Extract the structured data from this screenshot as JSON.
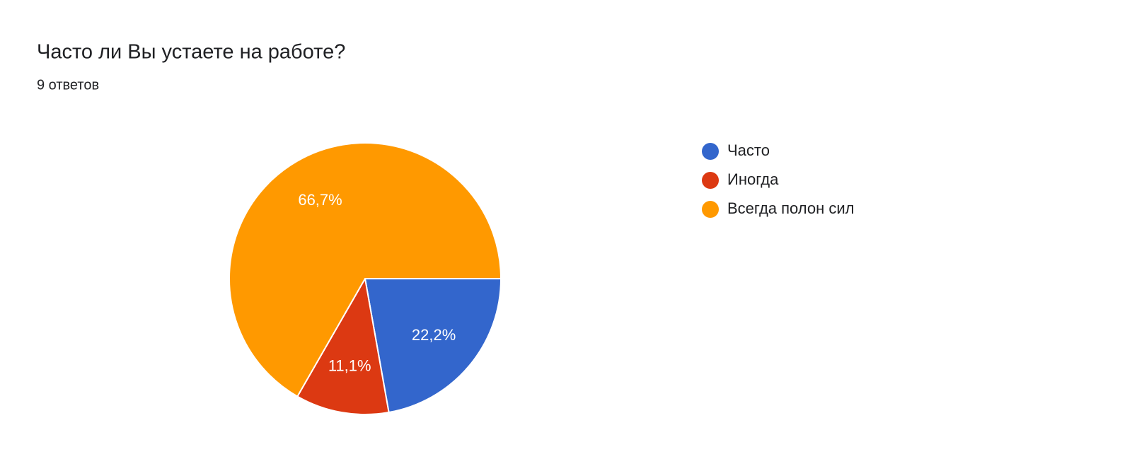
{
  "chart_data": {
    "type": "pie",
    "title": "Часто ли Вы устаете на работе?",
    "subtitle": "9 ответов",
    "categories": [
      "Часто",
      "Иногда",
      "Всегда полон сил"
    ],
    "values": [
      22.2,
      11.1,
      66.7
    ],
    "value_labels": [
      "22,2%",
      "11,1%",
      "66,7%"
    ],
    "colors": [
      "#3366cc",
      "#dc3912",
      "#ff9900"
    ],
    "legend": "right"
  }
}
